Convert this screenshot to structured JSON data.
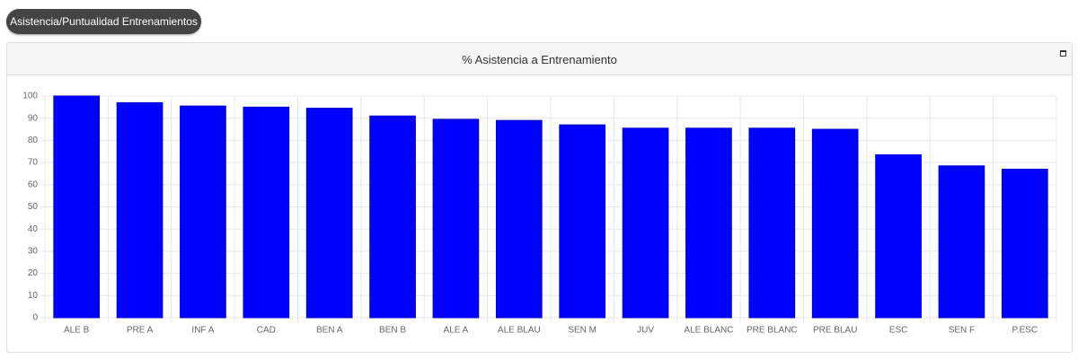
{
  "button": {
    "label": "Asistencia/Puntualidad Entrenamientos"
  },
  "chart_data": {
    "type": "bar",
    "title": "% Asistencia a Entrenamiento",
    "categories": [
      "ALE B",
      "PRE A",
      "INF A",
      "CAD",
      "BEN A",
      "BEN B",
      "ALE A",
      "ALE BLAU",
      "SEN M",
      "JUV",
      "ALE BLANC",
      "PRE BLANC",
      "PRE BLAU",
      "ESC",
      "SEN F",
      "P.ESC"
    ],
    "values": [
      100,
      97,
      95.5,
      95,
      94.5,
      91,
      89.5,
      89,
      87,
      85.5,
      85.5,
      85.5,
      85,
      73.5,
      68.5,
      67
    ],
    "color": "#0000ff",
    "ylim": [
      0,
      100
    ],
    "yticks": [
      0,
      10,
      20,
      30,
      40,
      50,
      60,
      70,
      80,
      90,
      100
    ],
    "grid": true
  }
}
